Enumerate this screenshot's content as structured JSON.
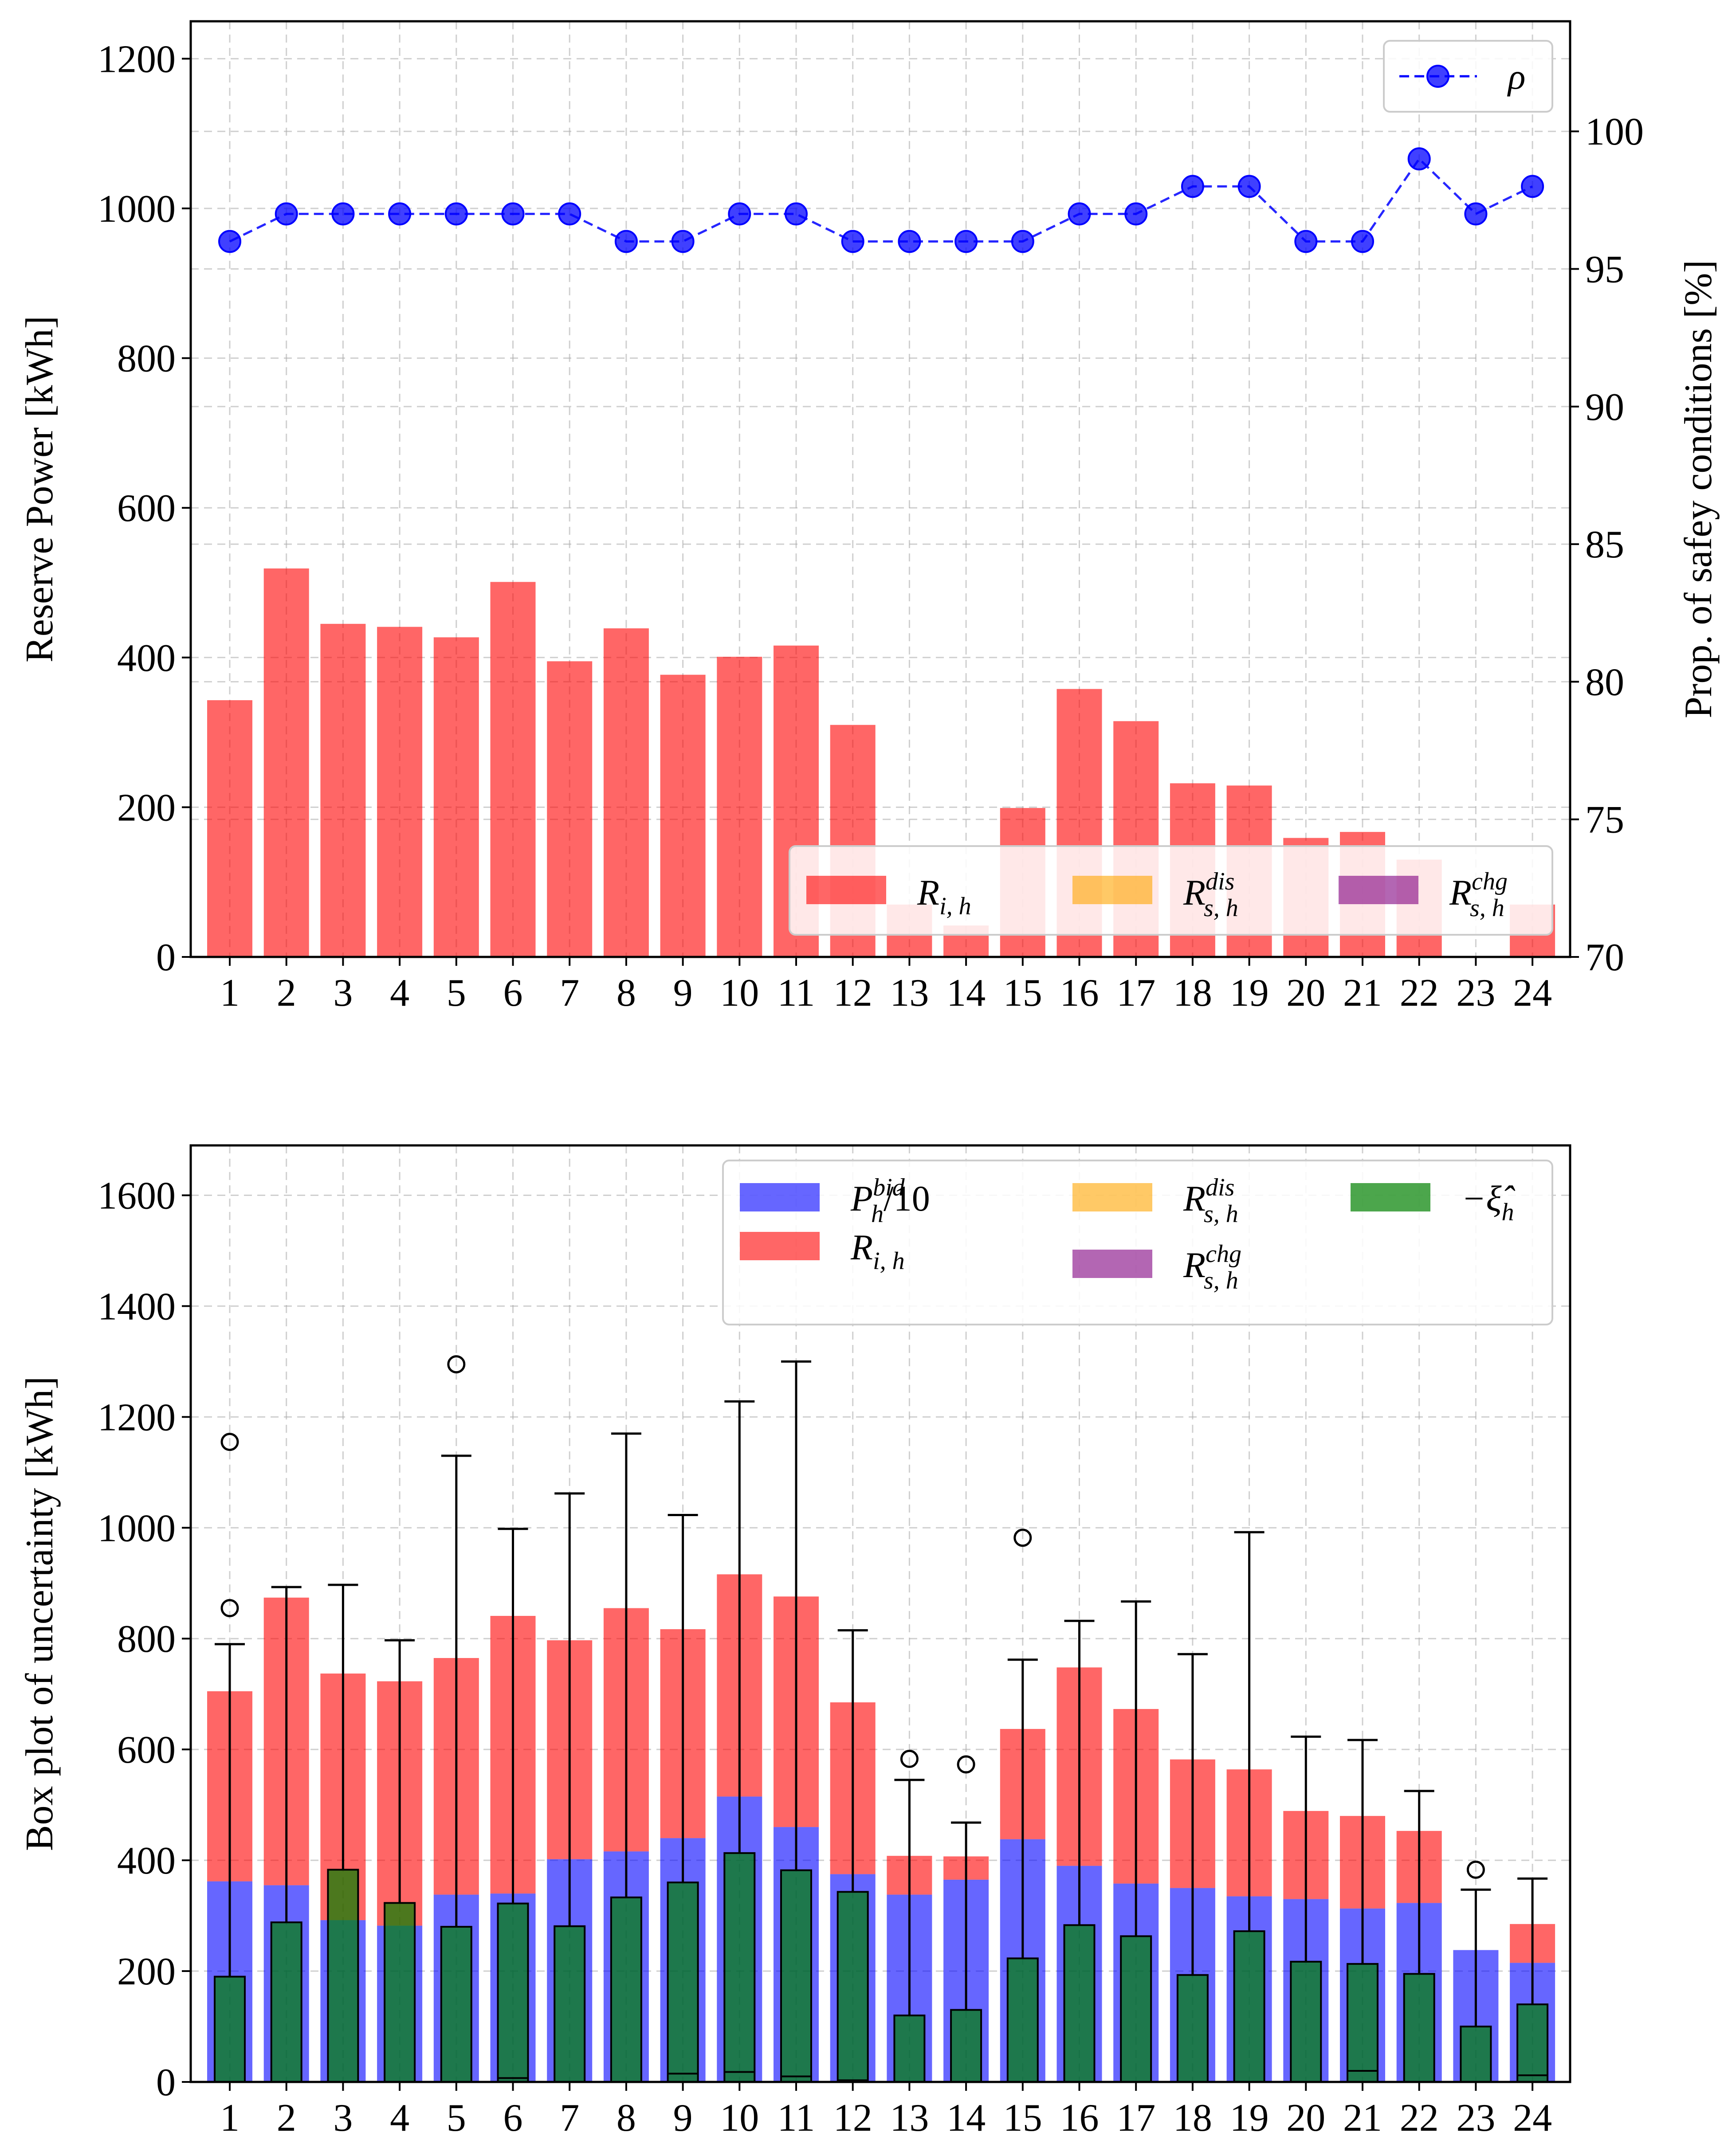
{
  "chart_data": [
    {
      "type": "bar",
      "categories": [
        "1",
        "2",
        "3",
        "4",
        "5",
        "6",
        "7",
        "8",
        "9",
        "10",
        "11",
        "12",
        "13",
        "14",
        "15",
        "16",
        "17",
        "18",
        "19",
        "20",
        "21",
        "22",
        "23",
        "24"
      ],
      "ylabel": "Reserve Power [kWh]",
      "ylabel_right": "Prop. of safey conditions [%]",
      "ylim": [
        0,
        1250
      ],
      "y2lim": [
        70,
        104
      ],
      "yticks": [
        0,
        200,
        400,
        600,
        800,
        1000,
        1200
      ],
      "y2ticks": [
        70,
        75,
        80,
        85,
        90,
        95,
        100
      ],
      "grid": true,
      "series": [
        {
          "name": "R_{i,h}",
          "kind": "bar",
          "color": "#ff0000",
          "opacity": 0.6,
          "values": [
            343,
            519,
            445,
            441,
            427,
            501,
            395,
            439,
            377,
            401,
            416,
            310,
            70,
            42,
            199,
            358,
            315,
            232,
            229,
            159,
            167,
            130,
            0,
            70
          ]
        },
        {
          "name": "R^{dis}_{s,h}",
          "kind": "bar",
          "color": "#ffa500",
          "opacity": 0.6,
          "values": [
            0,
            0,
            0,
            0,
            0,
            0,
            0,
            0,
            0,
            0,
            0,
            0,
            0,
            0,
            0,
            0,
            0,
            0,
            0,
            0,
            0,
            0,
            0,
            0
          ]
        },
        {
          "name": "R^{chg}_{s,h}",
          "kind": "bar",
          "color": "#800080",
          "opacity": 0.6,
          "values": [
            0,
            0,
            0,
            0,
            0,
            0,
            0,
            0,
            0,
            0,
            0,
            0,
            0,
            0,
            0,
            0,
            0,
            0,
            0,
            0,
            0,
            0,
            0,
            0
          ]
        },
        {
          "name": "ρ",
          "kind": "line",
          "axis": "right",
          "color": "#0000ff",
          "style": "dashed",
          "marker": "circle",
          "values": [
            96,
            97,
            97,
            97,
            97,
            97,
            97,
            96,
            96,
            97,
            97,
            96,
            96,
            96,
            96,
            97,
            97,
            98,
            98,
            96,
            96,
            99,
            97,
            98
          ]
        }
      ],
      "legend_upper": {
        "placement": "top-right",
        "entries": [
          {
            "label": "ρ"
          }
        ]
      },
      "legend_lower": {
        "placement": "lower-right",
        "entries": [
          {
            "base": "R",
            "sub": "i, h",
            "sup": ""
          },
          {
            "base": "R",
            "sub": "s, h",
            "sup": "dis"
          },
          {
            "base": "R",
            "sub": "s, h",
            "sup": "chg"
          }
        ]
      }
    },
    {
      "type": "bar",
      "categories": [
        "1",
        "2",
        "3",
        "4",
        "5",
        "6",
        "7",
        "8",
        "9",
        "10",
        "11",
        "12",
        "13",
        "14",
        "15",
        "16",
        "17",
        "18",
        "19",
        "20",
        "21",
        "22",
        "23",
        "24"
      ],
      "ylabel": "Box plot of uncertainty [kWh]",
      "ylim": [
        0,
        1690
      ],
      "yticks": [
        0,
        200,
        400,
        600,
        800,
        1000,
        1200,
        1400,
        1600
      ],
      "grid": true,
      "series": [
        {
          "name": "P^{bid}_h/10",
          "kind": "bar",
          "color": "#0000ff",
          "opacity": 0.6,
          "values": [
            362,
            355,
            292,
            282,
            338,
            340,
            402,
            416,
            440,
            515,
            460,
            375,
            338,
            365,
            438,
            390,
            358,
            350,
            335,
            330,
            313,
            323,
            238,
            215
          ]
        },
        {
          "name": "R_{i,h}",
          "kind": "bar",
          "stacked_on": "P^{bid}_h/10",
          "color": "#ff0000",
          "opacity": 0.6,
          "values": [
            343,
            519,
            445,
            441,
            427,
            501,
            395,
            439,
            377,
            401,
            416,
            310,
            70,
            42,
            199,
            358,
            315,
            232,
            229,
            159,
            167,
            130,
            0,
            70
          ]
        },
        {
          "name": "R^{dis}_{s,h}",
          "kind": "bar",
          "color": "#ffa500",
          "opacity": 0.6,
          "values": [
            0,
            0,
            0,
            0,
            0,
            0,
            0,
            0,
            0,
            0,
            0,
            0,
            0,
            0,
            0,
            0,
            0,
            0,
            0,
            0,
            0,
            0,
            0,
            0
          ]
        },
        {
          "name": "R^{chg}_{s,h}",
          "kind": "bar",
          "color": "#800080",
          "opacity": 0.6,
          "values": [
            0,
            0,
            0,
            0,
            0,
            0,
            0,
            0,
            0,
            0,
            0,
            0,
            0,
            0,
            0,
            0,
            0,
            0,
            0,
            0,
            0,
            0,
            0,
            0
          ]
        },
        {
          "name": "-ξ̂_h",
          "kind": "boxplot",
          "color": "#008000",
          "opacity": 0.7,
          "boxes": [
            {
              "min": 0,
              "q1": 0,
              "median": 0,
              "q3": 190,
              "max": 790,
              "outliers": [
                855,
                1155
              ]
            },
            {
              "min": 0,
              "q1": 0,
              "median": 0,
              "q3": 288,
              "max": 893,
              "outliers": []
            },
            {
              "min": 0,
              "q1": 0,
              "median": 0,
              "q3": 383,
              "max": 897,
              "outliers": []
            },
            {
              "min": 0,
              "q1": 0,
              "median": 0,
              "q3": 323,
              "max": 797,
              "outliers": []
            },
            {
              "min": 0,
              "q1": 0,
              "median": 0,
              "q3": 280,
              "max": 1130,
              "outliers": [
                1295
              ]
            },
            {
              "min": 0,
              "q1": 0,
              "median": 7,
              "q3": 322,
              "max": 998,
              "outliers": []
            },
            {
              "min": 0,
              "q1": 0,
              "median": 0,
              "q3": 281,
              "max": 1062,
              "outliers": []
            },
            {
              "min": 0,
              "q1": 0,
              "median": 0,
              "q3": 333,
              "max": 1170,
              "outliers": []
            },
            {
              "min": 0,
              "q1": 0,
              "median": 15,
              "q3": 360,
              "max": 1023,
              "outliers": []
            },
            {
              "min": 0,
              "q1": 0,
              "median": 18,
              "q3": 413,
              "max": 1228,
              "outliers": []
            },
            {
              "min": 0,
              "q1": 0,
              "median": 10,
              "q3": 382,
              "max": 1300,
              "outliers": []
            },
            {
              "min": 0,
              "q1": 0,
              "median": 3,
              "q3": 343,
              "max": 815,
              "outliers": []
            },
            {
              "min": 0,
              "q1": 0,
              "median": 0,
              "q3": 120,
              "max": 545,
              "outliers": [
                583
              ]
            },
            {
              "min": 0,
              "q1": 0,
              "median": 0,
              "q3": 130,
              "max": 468,
              "outliers": [
                573
              ]
            },
            {
              "min": 0,
              "q1": 0,
              "median": 0,
              "q3": 223,
              "max": 762,
              "outliers": [
                982
              ]
            },
            {
              "min": 0,
              "q1": 0,
              "median": 0,
              "q3": 283,
              "max": 832,
              "outliers": []
            },
            {
              "min": 0,
              "q1": 0,
              "median": 0,
              "q3": 263,
              "max": 867,
              "outliers": []
            },
            {
              "min": 0,
              "q1": 0,
              "median": 0,
              "q3": 193,
              "max": 772,
              "outliers": []
            },
            {
              "min": 0,
              "q1": 0,
              "median": 0,
              "q3": 272,
              "max": 992,
              "outliers": []
            },
            {
              "min": 0,
              "q1": 0,
              "median": 0,
              "q3": 217,
              "max": 623,
              "outliers": []
            },
            {
              "min": 0,
              "q1": 0,
              "median": 20,
              "q3": 213,
              "max": 617,
              "outliers": []
            },
            {
              "min": 0,
              "q1": 0,
              "median": 0,
              "q3": 195,
              "max": 525,
              "outliers": []
            },
            {
              "min": 0,
              "q1": 0,
              "median": 0,
              "q3": 100,
              "max": 347,
              "outliers": [
                383
              ]
            },
            {
              "min": 0,
              "q1": 0,
              "median": 12,
              "q3": 140,
              "max": 367,
              "outliers": []
            }
          ]
        }
      ],
      "legend": {
        "placement": "top-right",
        "entries": [
          {
            "base": "P",
            "sub": "h",
            "sup": "bid",
            "tail": "/10"
          },
          {
            "base": "R",
            "sub": "i, h",
            "sup": ""
          },
          {
            "base": "R",
            "sub": "s, h",
            "sup": "dis"
          },
          {
            "base": "R",
            "sub": "s, h",
            "sup": "chg"
          },
          {
            "base": "−ξ̂",
            "sub": "h",
            "sup": ""
          }
        ]
      }
    }
  ]
}
